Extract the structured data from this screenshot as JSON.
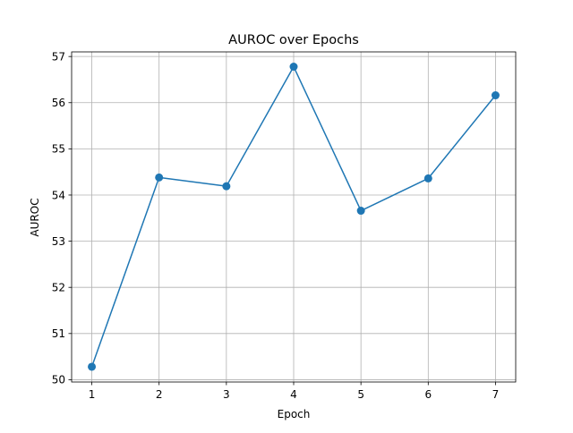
{
  "chart_data": {
    "type": "line",
    "title": "AUROC over Epochs",
    "xlabel": "Epoch",
    "ylabel": "AUROC",
    "x": [
      1,
      2,
      3,
      4,
      5,
      6,
      7
    ],
    "series": [
      {
        "values": [
          50.28,
          54.38,
          54.19,
          56.78,
          53.66,
          54.36,
          56.16
        ]
      }
    ],
    "xlim": [
      0.7,
      7.3
    ],
    "ylim": [
      49.95,
      57.1
    ],
    "xticks": [
      1,
      2,
      3,
      4,
      5,
      6,
      7
    ],
    "yticks": [
      50,
      51,
      52,
      53,
      54,
      55,
      56,
      57
    ],
    "grid": true,
    "marker": "circle",
    "line_color": "#1f77b4",
    "grid_color": "#b0b0b0"
  }
}
